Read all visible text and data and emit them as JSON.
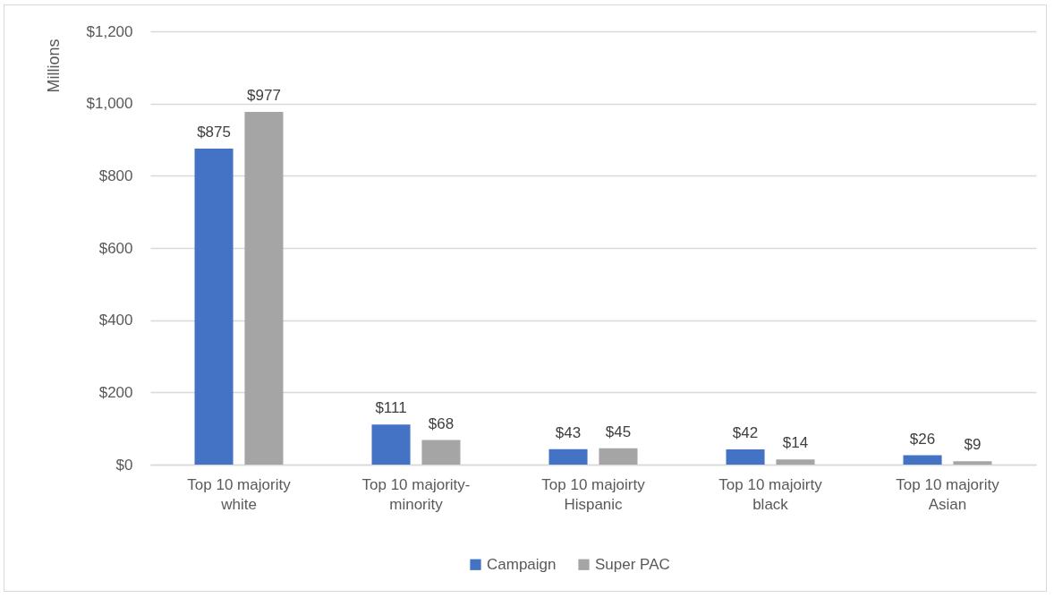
{
  "chart_data": {
    "type": "bar",
    "ylabel": "Millions",
    "categories": [
      "Top 10 majority white",
      "Top 10 majority-minority",
      "Top 10 majoirty Hispanic",
      "Top 10 majoirty black",
      "Top 10 majority Asian"
    ],
    "series": [
      {
        "name": "Campaign",
        "color": "#4472c4",
        "values": [
          875,
          111,
          43,
          42,
          26
        ],
        "value_labels": [
          "$875",
          "$111",
          "$43",
          "$42",
          "$26"
        ]
      },
      {
        "name": "Super PAC",
        "color": "#a5a5a5",
        "values": [
          977,
          68,
          45,
          14,
          9
        ],
        "value_labels": [
          "$977",
          "$68",
          "$45",
          "$14",
          "$9"
        ]
      }
    ],
    "ylim": [
      0,
      1200
    ],
    "yticks": [
      {
        "value": 0,
        "label": "$0"
      },
      {
        "value": 200,
        "label": "$200"
      },
      {
        "value": 400,
        "label": "$400"
      },
      {
        "value": 600,
        "label": "$600"
      },
      {
        "value": 800,
        "label": "$800"
      },
      {
        "value": 1000,
        "label": "$1,000"
      },
      {
        "value": 1200,
        "label": "$1,200"
      }
    ],
    "grid": "y",
    "legend": "bottom"
  }
}
